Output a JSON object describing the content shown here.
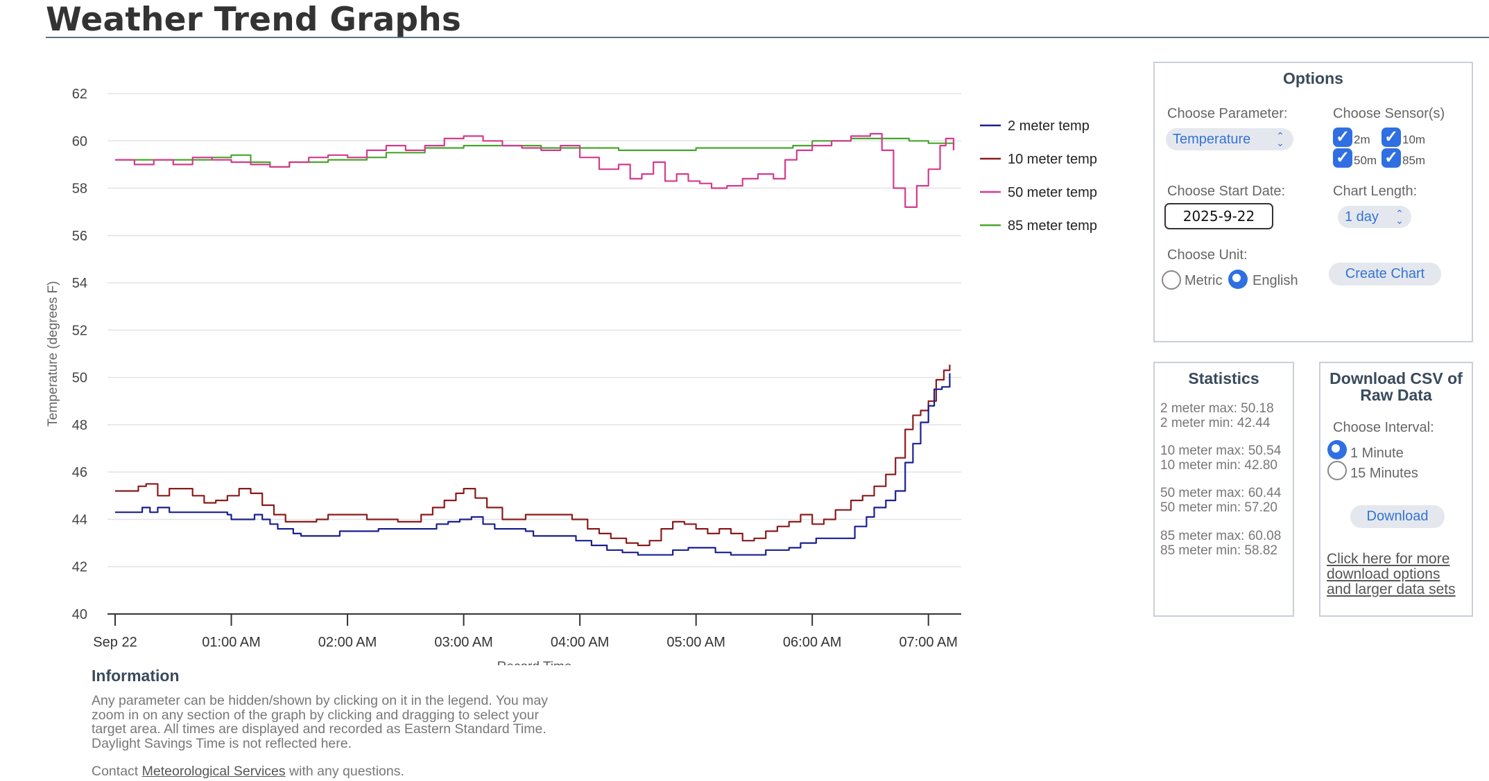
{
  "page": {
    "title": "Weather Trend Graphs"
  },
  "chart_data": {
    "type": "line",
    "ylabel": "Temperature (degrees F)",
    "xlabel": "Record Time",
    "ylim": [
      40,
      62
    ],
    "yticks": [
      40,
      42,
      44,
      46,
      48,
      50,
      52,
      54,
      56,
      58,
      60,
      62
    ],
    "xlim": [
      0,
      433
    ],
    "xticks": [
      {
        "x": 0,
        "label": "Sep 22"
      },
      {
        "x": 60,
        "label": "01:00 AM"
      },
      {
        "x": 120,
        "label": "02:00 AM"
      },
      {
        "x": 180,
        "label": "03:00 AM"
      },
      {
        "x": 240,
        "label": "04:00 AM"
      },
      {
        "x": 300,
        "label": "05:00 AM"
      },
      {
        "x": 360,
        "label": "06:00 AM"
      },
      {
        "x": 420,
        "label": "07:00 AM"
      }
    ],
    "grid": true,
    "legend_position": "right",
    "series": [
      {
        "name": "2 meter temp",
        "color": "#1a1f8f",
        "points": [
          [
            0,
            44.3
          ],
          [
            12,
            44.3
          ],
          [
            14,
            44.5
          ],
          [
            18,
            44.3
          ],
          [
            22,
            44.5
          ],
          [
            28,
            44.3
          ],
          [
            58,
            44.2
          ],
          [
            60,
            44
          ],
          [
            68,
            44
          ],
          [
            72,
            44.2
          ],
          [
            76,
            44
          ],
          [
            80,
            43.8
          ],
          [
            84,
            43.6
          ],
          [
            92,
            43.4
          ],
          [
            96,
            43.3
          ],
          [
            112,
            43.3
          ],
          [
            116,
            43.5
          ],
          [
            124,
            43.5
          ],
          [
            136,
            43.6
          ],
          [
            160,
            43.6
          ],
          [
            166,
            43.8
          ],
          [
            172,
            43.9
          ],
          [
            178,
            44
          ],
          [
            184,
            44.1
          ],
          [
            190,
            43.8
          ],
          [
            196,
            43.6
          ],
          [
            212,
            43.5
          ],
          [
            216,
            43.3
          ],
          [
            232,
            43.3
          ],
          [
            238,
            43.1
          ],
          [
            246,
            42.9
          ],
          [
            254,
            42.7
          ],
          [
            262,
            42.6
          ],
          [
            270,
            42.5
          ],
          [
            282,
            42.5
          ],
          [
            288,
            42.7
          ],
          [
            296,
            42.8
          ],
          [
            306,
            42.8
          ],
          [
            310,
            42.6
          ],
          [
            318,
            42.5
          ],
          [
            330,
            42.5
          ],
          [
            336,
            42.7
          ],
          [
            348,
            42.8
          ],
          [
            354,
            43
          ],
          [
            362,
            43.2
          ],
          [
            376,
            43.2
          ],
          [
            382,
            43.7
          ],
          [
            388,
            44.1
          ],
          [
            392,
            44.5
          ],
          [
            398,
            44.8
          ],
          [
            403,
            45.2
          ],
          [
            408,
            46.4
          ],
          [
            412,
            47.2
          ],
          [
            416,
            48.1
          ],
          [
            420,
            48.8
          ],
          [
            423,
            49.5
          ],
          [
            427,
            49.6
          ],
          [
            431,
            50.18
          ]
        ]
      },
      {
        "name": "10 meter temp",
        "color": "#8b1a1a",
        "points": [
          [
            0,
            45.2
          ],
          [
            6,
            45.2
          ],
          [
            12,
            45.4
          ],
          [
            16,
            45.5
          ],
          [
            22,
            45
          ],
          [
            28,
            45.3
          ],
          [
            40,
            45
          ],
          [
            46,
            44.7
          ],
          [
            52,
            44.8
          ],
          [
            58,
            45
          ],
          [
            64,
            45.3
          ],
          [
            70,
            45.1
          ],
          [
            76,
            44.6
          ],
          [
            82,
            44.2
          ],
          [
            88,
            43.9
          ],
          [
            96,
            43.9
          ],
          [
            104,
            44
          ],
          [
            110,
            44.2
          ],
          [
            130,
            44
          ],
          [
            146,
            43.9
          ],
          [
            158,
            44.2
          ],
          [
            164,
            44.5
          ],
          [
            170,
            44.8
          ],
          [
            176,
            45.1
          ],
          [
            180,
            45.3
          ],
          [
            186,
            44.9
          ],
          [
            192,
            44.5
          ],
          [
            200,
            44
          ],
          [
            212,
            44.2
          ],
          [
            228,
            44.2
          ],
          [
            236,
            44
          ],
          [
            244,
            43.6
          ],
          [
            250,
            43.4
          ],
          [
            256,
            43.2
          ],
          [
            264,
            43
          ],
          [
            270,
            42.9
          ],
          [
            276,
            43.1
          ],
          [
            282,
            43.6
          ],
          [
            288,
            43.9
          ],
          [
            294,
            43.8
          ],
          [
            300,
            43.6
          ],
          [
            306,
            43.4
          ],
          [
            312,
            43.6
          ],
          [
            318,
            43.4
          ],
          [
            324,
            43.1
          ],
          [
            330,
            43.2
          ],
          [
            336,
            43.5
          ],
          [
            342,
            43.7
          ],
          [
            348,
            43.9
          ],
          [
            354,
            44.2
          ],
          [
            360,
            43.8
          ],
          [
            366,
            44
          ],
          [
            372,
            44.4
          ],
          [
            380,
            44.8
          ],
          [
            386,
            45
          ],
          [
            392,
            45.4
          ],
          [
            398,
            45.9
          ],
          [
            403,
            46.6
          ],
          [
            408,
            47.8
          ],
          [
            412,
            48.4
          ],
          [
            416,
            48.6
          ],
          [
            420,
            49
          ],
          [
            424,
            49.9
          ],
          [
            428,
            50.3
          ],
          [
            431,
            50.54
          ]
        ]
      },
      {
        "name": "50 meter temp",
        "color": "#d43a8e",
        "points": [
          [
            0,
            59.2
          ],
          [
            10,
            59
          ],
          [
            20,
            59.2
          ],
          [
            30,
            59
          ],
          [
            40,
            59.3
          ],
          [
            50,
            59.2
          ],
          [
            60,
            59.1
          ],
          [
            70,
            59
          ],
          [
            80,
            58.9
          ],
          [
            90,
            59.1
          ],
          [
            100,
            59.3
          ],
          [
            110,
            59.4
          ],
          [
            120,
            59.3
          ],
          [
            130,
            59.6
          ],
          [
            140,
            59.8
          ],
          [
            150,
            59.6
          ],
          [
            160,
            59.8
          ],
          [
            170,
            60.1
          ],
          [
            180,
            60.2
          ],
          [
            190,
            60
          ],
          [
            200,
            59.8
          ],
          [
            210,
            59.7
          ],
          [
            220,
            59.6
          ],
          [
            230,
            59.8
          ],
          [
            240,
            59.3
          ],
          [
            250,
            58.8
          ],
          [
            260,
            59
          ],
          [
            266,
            58.4
          ],
          [
            272,
            58.6
          ],
          [
            278,
            59.1
          ],
          [
            284,
            58.3
          ],
          [
            290,
            58.6
          ],
          [
            296,
            58.3
          ],
          [
            302,
            58.2
          ],
          [
            308,
            58
          ],
          [
            316,
            58.1
          ],
          [
            324,
            58.4
          ],
          [
            332,
            58.6
          ],
          [
            340,
            58.4
          ],
          [
            346,
            59.2
          ],
          [
            352,
            59.6
          ],
          [
            360,
            59.8
          ],
          [
            370,
            60
          ],
          [
            380,
            60.2
          ],
          [
            390,
            60.3
          ],
          [
            396,
            59.6
          ],
          [
            402,
            58
          ],
          [
            408,
            57.2
          ],
          [
            414,
            58.1
          ],
          [
            420,
            58.8
          ],
          [
            426,
            59.8
          ],
          [
            429,
            60.1
          ],
          [
            433,
            59.6
          ]
        ]
      },
      {
        "name": "85 meter temp",
        "color": "#47a62b",
        "points": [
          [
            0,
            59.2
          ],
          [
            30,
            59.2
          ],
          [
            50,
            59.3
          ],
          [
            60,
            59.4
          ],
          [
            70,
            59.1
          ],
          [
            80,
            58.9
          ],
          [
            90,
            59.1
          ],
          [
            110,
            59.2
          ],
          [
            130,
            59.3
          ],
          [
            140,
            59.5
          ],
          [
            160,
            59.7
          ],
          [
            180,
            59.8
          ],
          [
            200,
            59.8
          ],
          [
            220,
            59.7
          ],
          [
            260,
            59.6
          ],
          [
            280,
            59.6
          ],
          [
            300,
            59.7
          ],
          [
            330,
            59.7
          ],
          [
            350,
            59.8
          ],
          [
            360,
            60
          ],
          [
            380,
            60.1
          ],
          [
            400,
            60.1
          ],
          [
            410,
            60
          ],
          [
            420,
            59.9
          ],
          [
            433,
            59.8
          ]
        ]
      }
    ]
  },
  "options": {
    "title": "Options",
    "parameter_label": "Choose Parameter:",
    "parameter_value": "Temperature",
    "sensors_label": "Choose Sensor(s)",
    "sensors": [
      "2m",
      "10m",
      "50m",
      "85m"
    ],
    "start_date_label": "Choose Start Date:",
    "start_date_value": "2025-9-22",
    "length_label": "Chart Length:",
    "length_value": "1 day",
    "unit_label": "Choose Unit:",
    "unit_metric": "Metric",
    "unit_english": "English",
    "create_button": "Create Chart"
  },
  "statistics": {
    "title": "Statistics",
    "lines": [
      [
        "2 meter max: 50.18",
        "2 meter min: 42.44"
      ],
      [
        "10 meter max: 50.54",
        "10 meter min: 42.80"
      ],
      [
        "50 meter max: 60.44",
        "50 meter min: 57.20"
      ],
      [
        "85 meter max: 60.08",
        "85 meter min: 58.82"
      ]
    ]
  },
  "download": {
    "title_line1": "Download CSV of",
    "title_line2": "Raw Data",
    "interval_label": "Choose Interval:",
    "interval_1": "1 Minute",
    "interval_15": "15 Minutes",
    "button": "Download",
    "link_lines": [
      "Click here for more",
      "download options",
      "and larger data sets"
    ]
  },
  "information": {
    "title": "Information",
    "lines": [
      "Any parameter can be hidden/shown by clicking on it in the legend. You may",
      "zoom in on any section of the graph by clicking and dragging to select your",
      "target area. All times are displayed and recorded as Eastern Standard Time.",
      "Daylight Savings Time is not reflected here."
    ],
    "contact_prefix": "Contact ",
    "contact_link": "Meteorological Services",
    "contact_suffix": " with any questions."
  }
}
